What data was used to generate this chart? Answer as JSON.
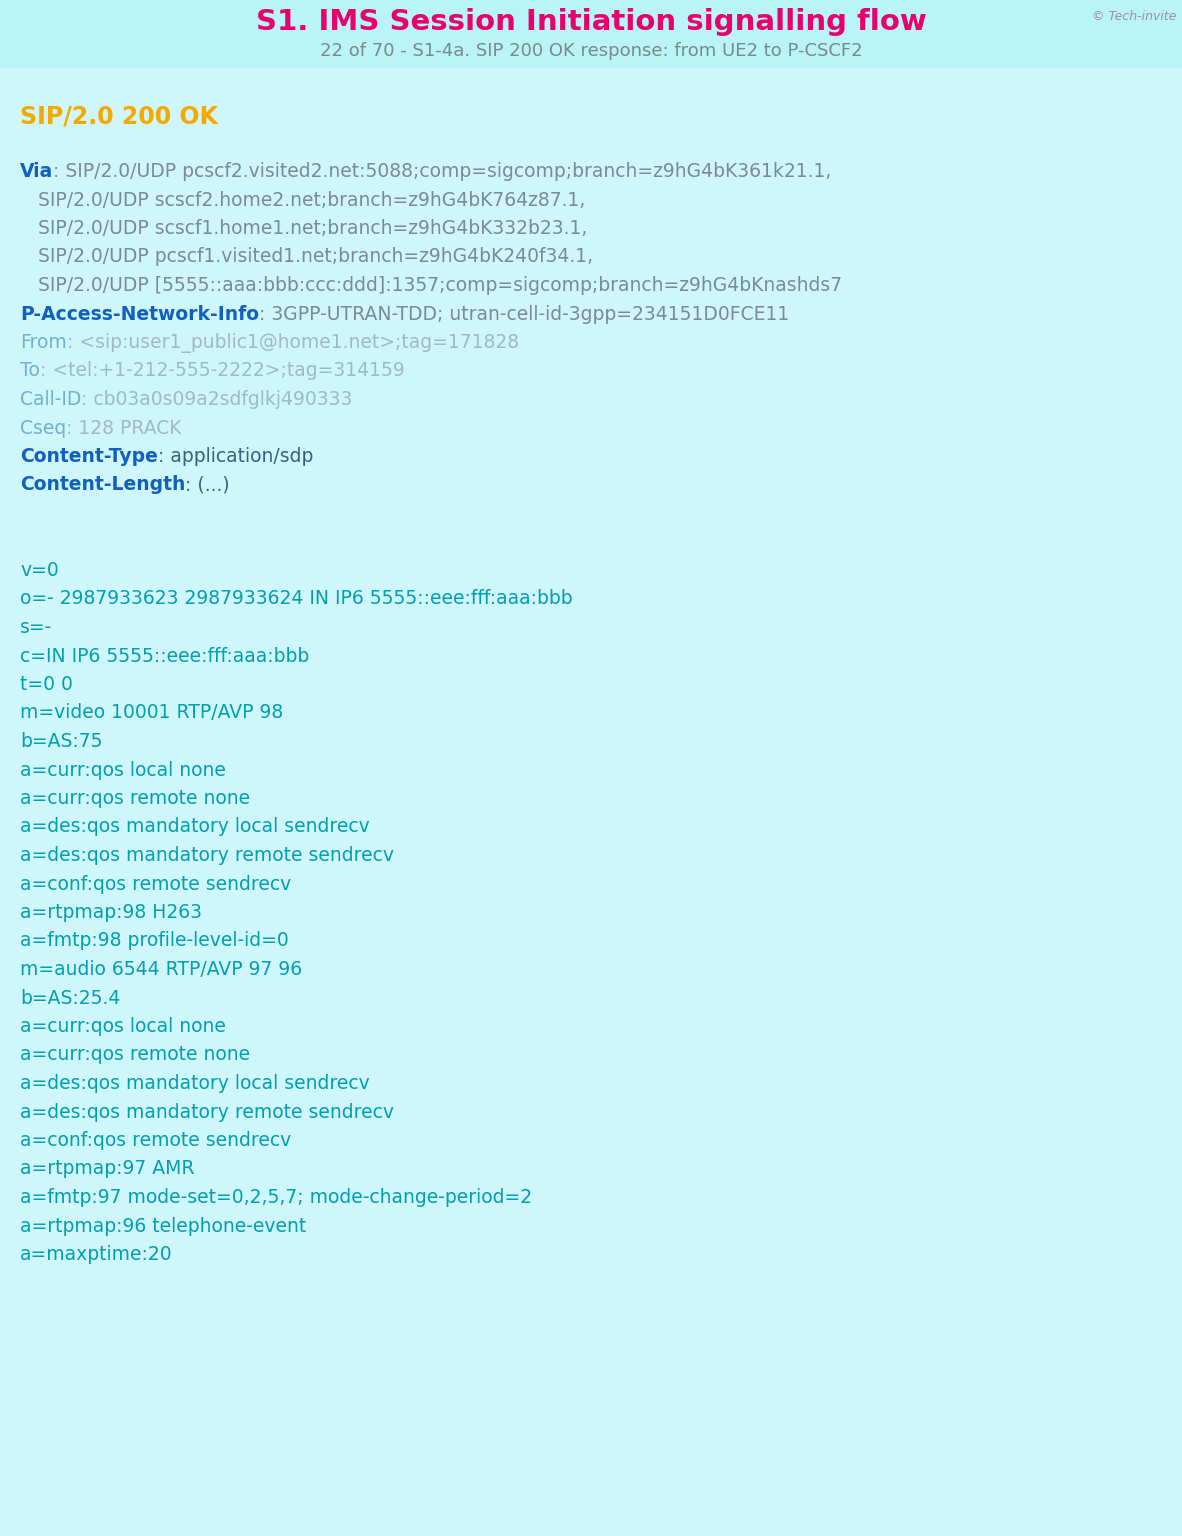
{
  "bg_color": "#cff6fa",
  "title": "S1. IMS Session Initiation signalling flow",
  "subtitle": "22 of 70 - S1-4a. SIP 200 OK response: from UE2 to P-CSCF2",
  "title_color": "#e8006e",
  "subtitle_color": "#7a8a8a",
  "watermark": "© Tech-invite",
  "watermark_color": "#9b8fb0",
  "lines": [
    {
      "parts": [
        {
          "text": "SIP/2.0 200 OK",
          "color": "#f5a800",
          "bold": true,
          "size": 17
        }
      ]
    },
    {
      "parts": []
    },
    {
      "parts": [
        {
          "text": "Via",
          "color": "#1060c0",
          "bold": true,
          "size": 13.5
        },
        {
          "text": ": SIP/2.0/UDP pcscf2.visited2.net:5088;comp=sigcomp;branch=z9hG4bK361k21.1,",
          "color": "#7a8a96",
          "bold": false,
          "size": 13.5
        }
      ]
    },
    {
      "parts": [
        {
          "text": "   SIP/2.0/UDP scscf2.home2.net;branch=z9hG4bK764z87.1,",
          "color": "#7a8a96",
          "bold": false,
          "size": 13.5
        }
      ]
    },
    {
      "parts": [
        {
          "text": "   SIP/2.0/UDP scscf1.home1.net;branch=z9hG4bK332b23.1,",
          "color": "#7a8a96",
          "bold": false,
          "size": 13.5
        }
      ]
    },
    {
      "parts": [
        {
          "text": "   SIP/2.0/UDP pcscf1.visited1.net;branch=z9hG4bK240f34.1,",
          "color": "#7a8a96",
          "bold": false,
          "size": 13.5
        }
      ]
    },
    {
      "parts": [
        {
          "text": "   SIP/2.0/UDP [5555::aaa:bbb:ccc:ddd]:1357;comp=sigcomp;branch=z9hG4bKnashds7",
          "color": "#7a8a96",
          "bold": false,
          "size": 13.5
        }
      ]
    },
    {
      "parts": [
        {
          "text": "P-Access-Network-Info",
          "color": "#1060c0",
          "bold": true,
          "size": 13.5
        },
        {
          "text": ": 3GPP-UTRAN-TDD; utran-cell-id-3gpp=234151D0FCE11",
          "color": "#7a8a96",
          "bold": false,
          "size": 13.5
        }
      ]
    },
    {
      "parts": [
        {
          "text": "From",
          "color": "#70b0d0",
          "bold": false,
          "size": 13.5
        },
        {
          "text": ": <sip:user1_public1@home1.net>;tag=171828",
          "color": "#a0b8c8",
          "bold": false,
          "size": 13.5
        }
      ]
    },
    {
      "parts": [
        {
          "text": "To",
          "color": "#70b0d0",
          "bold": false,
          "size": 13.5
        },
        {
          "text": ": <tel:+1-212-555-2222>;tag=314159",
          "color": "#a0b8c8",
          "bold": false,
          "size": 13.5
        }
      ]
    },
    {
      "parts": [
        {
          "text": "Call-ID",
          "color": "#70b0d0",
          "bold": false,
          "size": 13.5
        },
        {
          "text": ": cb03a0s09a2sdfglkj490333",
          "color": "#a0b8c8",
          "bold": false,
          "size": 13.5
        }
      ]
    },
    {
      "parts": [
        {
          "text": "Cseq",
          "color": "#70b0d0",
          "bold": false,
          "size": 13.5
        },
        {
          "text": ": 128 PRACK",
          "color": "#a0b8c8",
          "bold": false,
          "size": 13.5
        }
      ]
    },
    {
      "parts": [
        {
          "text": "Content-Type",
          "color": "#1060c0",
          "bold": true,
          "size": 13.5
        },
        {
          "text": ": application/sdp",
          "color": "#3a6080",
          "bold": false,
          "size": 13.5
        }
      ]
    },
    {
      "parts": [
        {
          "text": "Content-Length",
          "color": "#1060c0",
          "bold": true,
          "size": 13.5
        },
        {
          "text": ": (...)",
          "color": "#3a6080",
          "bold": false,
          "size": 13.5
        }
      ]
    },
    {
      "parts": []
    },
    {
      "parts": []
    },
    {
      "parts": [
        {
          "text": "v=0",
          "color": "#00a0b0",
          "bold": false,
          "size": 13.5
        }
      ]
    },
    {
      "parts": [
        {
          "text": "o=- 2987933623 2987933624 IN IP6 5555::eee:fff:aaa:bbb",
          "color": "#00a0b0",
          "bold": false,
          "size": 13.5
        }
      ]
    },
    {
      "parts": [
        {
          "text": "s=-",
          "color": "#00a0b0",
          "bold": false,
          "size": 13.5
        }
      ]
    },
    {
      "parts": [
        {
          "text": "c=IN IP6 5555::eee:fff:aaa:bbb",
          "color": "#00a0b0",
          "bold": false,
          "size": 13.5
        }
      ]
    },
    {
      "parts": [
        {
          "text": "t=0 0",
          "color": "#00a0b0",
          "bold": false,
          "size": 13.5
        }
      ]
    },
    {
      "parts": [
        {
          "text": "m=video 10001 RTP/AVP 98",
          "color": "#00a0b0",
          "bold": false,
          "size": 13.5
        }
      ]
    },
    {
      "parts": [
        {
          "text": "b=AS:75",
          "color": "#00a0b0",
          "bold": false,
          "size": 13.5
        }
      ]
    },
    {
      "parts": [
        {
          "text": "a=curr:qos local none",
          "color": "#00a0b0",
          "bold": false,
          "size": 13.5
        }
      ]
    },
    {
      "parts": [
        {
          "text": "a=curr:qos remote none",
          "color": "#00a0b0",
          "bold": false,
          "size": 13.5
        }
      ]
    },
    {
      "parts": [
        {
          "text": "a=des:qos mandatory local sendrecv",
          "color": "#00a0b0",
          "bold": false,
          "size": 13.5
        }
      ]
    },
    {
      "parts": [
        {
          "text": "a=des:qos mandatory remote sendrecv",
          "color": "#00a0b0",
          "bold": false,
          "size": 13.5
        }
      ]
    },
    {
      "parts": [
        {
          "text": "a=conf:qos remote sendrecv",
          "color": "#00a0b0",
          "bold": false,
          "size": 13.5
        }
      ]
    },
    {
      "parts": [
        {
          "text": "a=rtpmap:98 H263",
          "color": "#00a0b0",
          "bold": false,
          "size": 13.5
        }
      ]
    },
    {
      "parts": [
        {
          "text": "a=fmtp:98 profile-level-id=0",
          "color": "#00a0b0",
          "bold": false,
          "size": 13.5
        }
      ]
    },
    {
      "parts": [
        {
          "text": "m=audio 6544 RTP/AVP 97 96",
          "color": "#00a0b0",
          "bold": false,
          "size": 13.5
        }
      ]
    },
    {
      "parts": [
        {
          "text": "b=AS:25.4",
          "color": "#00a0b0",
          "bold": false,
          "size": 13.5
        }
      ]
    },
    {
      "parts": [
        {
          "text": "a=curr:qos local none",
          "color": "#00a0b0",
          "bold": false,
          "size": 13.5
        }
      ]
    },
    {
      "parts": [
        {
          "text": "a=curr:qos remote none",
          "color": "#00a0b0",
          "bold": false,
          "size": 13.5
        }
      ]
    },
    {
      "parts": [
        {
          "text": "a=des:qos mandatory local sendrecv",
          "color": "#00a0b0",
          "bold": false,
          "size": 13.5
        }
      ]
    },
    {
      "parts": [
        {
          "text": "a=des:qos mandatory remote sendrecv",
          "color": "#00a0b0",
          "bold": false,
          "size": 13.5
        }
      ]
    },
    {
      "parts": [
        {
          "text": "a=conf:qos remote sendrecv",
          "color": "#00a0b0",
          "bold": false,
          "size": 13.5
        }
      ]
    },
    {
      "parts": [
        {
          "text": "a=rtpmap:97 AMR",
          "color": "#00a0b0",
          "bold": false,
          "size": 13.5
        }
      ]
    },
    {
      "parts": [
        {
          "text": "a=fmtp:97 mode-set=0,2,5,7; mode-change-period=2",
          "color": "#00a0b0",
          "bold": false,
          "size": 13.5
        }
      ]
    },
    {
      "parts": [
        {
          "text": "a=rtpmap:96 telephone-event",
          "color": "#00a0b0",
          "bold": false,
          "size": 13.5
        }
      ]
    },
    {
      "parts": [
        {
          "text": "a=maxptime:20",
          "color": "#00a0b0",
          "bold": false,
          "size": 13.5
        }
      ]
    }
  ]
}
